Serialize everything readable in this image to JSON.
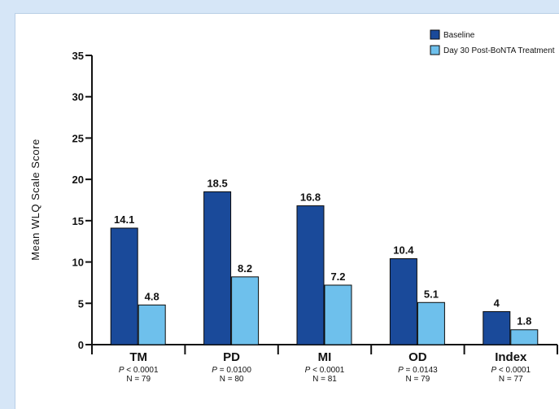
{
  "chart_data": {
    "type": "bar",
    "categories": [
      "TM",
      "PD",
      "MI",
      "OD",
      "Index"
    ],
    "series": [
      {
        "name": "Baseline",
        "values": [
          14.1,
          18.5,
          16.8,
          10.4,
          4
        ],
        "labels": [
          "14.1",
          "18.5",
          "16.8",
          "10.4",
          "4"
        ],
        "color": "#1a4a9a"
      },
      {
        "name": "Day 30 Post-BoNTA Treatment",
        "values": [
          4.8,
          8.2,
          7.2,
          5.1,
          1.8
        ],
        "labels": [
          "4.8",
          "8.2",
          "7.2",
          "5.1",
          "1.8"
        ],
        "color": "#6ec0ec"
      }
    ],
    "category_notes": [
      {
        "p_label": "P",
        "p_rest": " < 0.0001",
        "n": "N = 79"
      },
      {
        "p_label": "P",
        "p_rest": " = 0.0100",
        "n": "N = 80"
      },
      {
        "p_label": "P",
        "p_rest": " < 0.0001",
        "n": "N = 81"
      },
      {
        "p_label": "P",
        "p_rest": " = 0.0143",
        "n": "N = 79"
      },
      {
        "p_label": "P",
        "p_rest": " < 0.0001",
        "n": "N = 77"
      }
    ],
    "ylabel": "Mean WLQ Scale Score",
    "ylim": [
      0,
      35
    ],
    "yticks": [
      "0",
      "5",
      "10",
      "15",
      "20",
      "25",
      "30",
      "35"
    ],
    "legend_position": "top-right",
    "grid": false
  }
}
